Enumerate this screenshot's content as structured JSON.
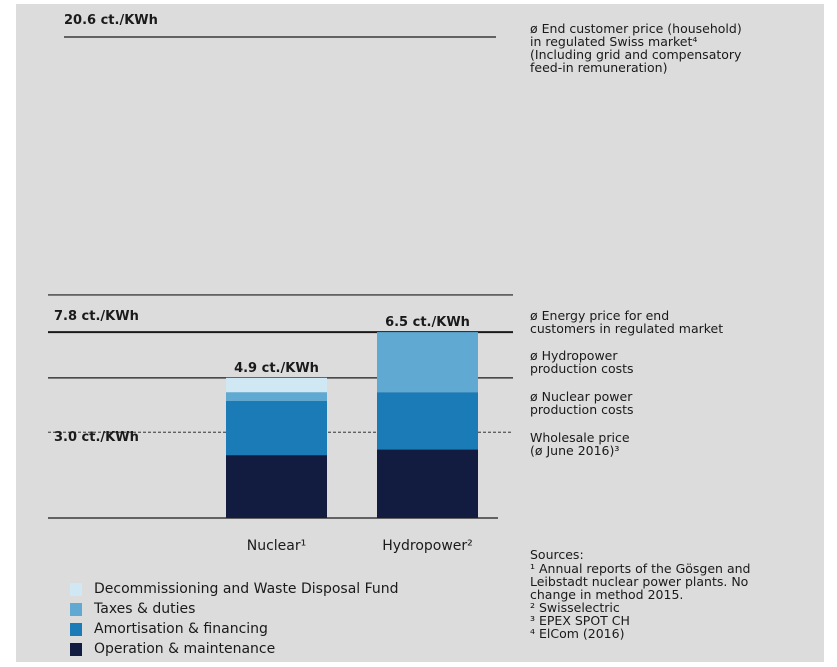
{
  "colors": {
    "background": "#dcdcdc",
    "decommissioning": "#cfe8f4",
    "taxes": "#5fa9d2",
    "amortisation": "#1a7bb6",
    "operation": "#121c40",
    "line": "#1a1a1a"
  },
  "chart_data": {
    "type": "bar",
    "stacked": true,
    "categories": [
      "Nuclear¹",
      "Hydropower²"
    ],
    "series": [
      {
        "name": "Operation & maintenance",
        "values": [
          2.2,
          2.4
        ]
      },
      {
        "name": "Amortisation & financing",
        "values": [
          1.9,
          2.0
        ]
      },
      {
        "name": "Taxes & duties",
        "values": [
          0.3,
          2.1
        ]
      },
      {
        "name": "Decommissioning and Waste Disposal Fund",
        "values": [
          0.5,
          0.0
        ]
      }
    ],
    "totals": [
      "4.9 ct./KWh",
      "6.5 ct./KWh"
    ],
    "reference_lines": [
      {
        "value": 20.6,
        "label": "20.6 ct./KWh",
        "description": "ø End customer price (household)\nin regulated Swiss market⁴\n(Including grid and compensatory\nfeed-in remuneration)",
        "style": "solid"
      },
      {
        "value": 7.8,
        "label": "7.8 ct./KWh",
        "description": "ø Energy price for end\ncustomers in regulated market",
        "style": "solid"
      },
      {
        "value": 6.5,
        "label": "",
        "description": "ø Hydropower\nproduction costs",
        "style": "solid"
      },
      {
        "value": 4.9,
        "label": "",
        "description": "ø Nuclear power\nproduction costs",
        "style": "solid"
      },
      {
        "value": 3.0,
        "label": "3.0 ct./KWh",
        "description": "Wholesale price\n(ø June 2016)³",
        "style": "dashed"
      }
    ],
    "legend": "bottom-left"
  },
  "sources": {
    "title": "Sources:",
    "items": [
      "¹ Annual reports of the Gösgen and\n  Leibstadt nuclear power plants. No\n  change in method 2015.",
      "² Swisselectric",
      "³ EPEX SPOT CH",
      "⁴ ElCom (2016)"
    ]
  }
}
